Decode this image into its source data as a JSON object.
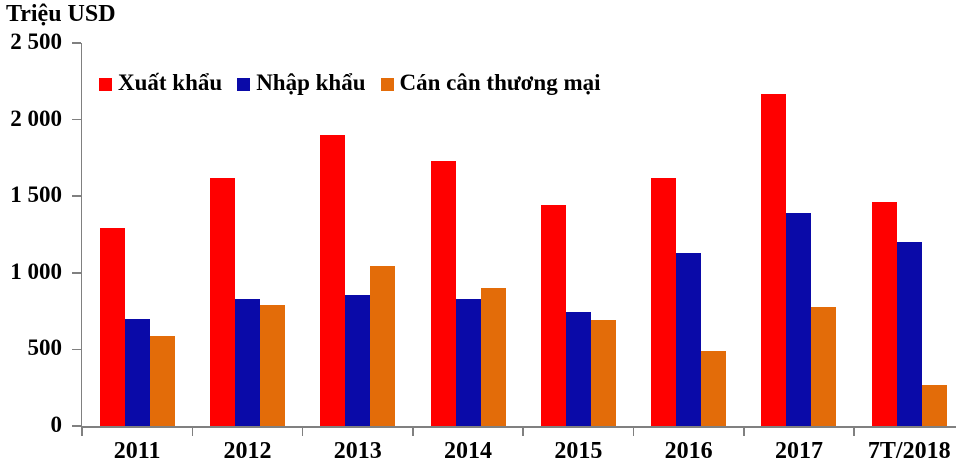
{
  "chart_data": {
    "type": "bar",
    "title": "Triệu USD",
    "ylabel": "Triệu USD",
    "xlabel": "",
    "grid": false,
    "legend_position": "top",
    "ylim": [
      0,
      2500
    ],
    "y_ticks": [
      {
        "label": "2 500",
        "value": 2500
      },
      {
        "label": "2 000",
        "value": 2000
      },
      {
        "label": "1 500",
        "value": 1500
      },
      {
        "label": "1 000",
        "value": 1000
      },
      {
        "label": "500",
        "value": 500
      },
      {
        "label": "0",
        "value": 0
      }
    ],
    "categories": [
      "2011",
      "2012",
      "2013",
      "2014",
      "2015",
      "2016",
      "2017",
      "7T/2018"
    ],
    "series": [
      {
        "name": "Xuất khẩu",
        "color": "#FF0000",
        "values": [
          1290,
          1620,
          1900,
          1730,
          1440,
          1620,
          2170,
          1465
        ]
      },
      {
        "name": "Nhập khẩu",
        "color": "#0A0AA8",
        "values": [
          700,
          830,
          855,
          830,
          745,
          1130,
          1390,
          1200
        ]
      },
      {
        "name": "Cán cân thương mại",
        "color": "#E36C09",
        "values": [
          590,
          790,
          1045,
          900,
          695,
          490,
          780,
          265
        ]
      }
    ],
    "axis_color": "#808080",
    "unit": "Triệu USD"
  }
}
